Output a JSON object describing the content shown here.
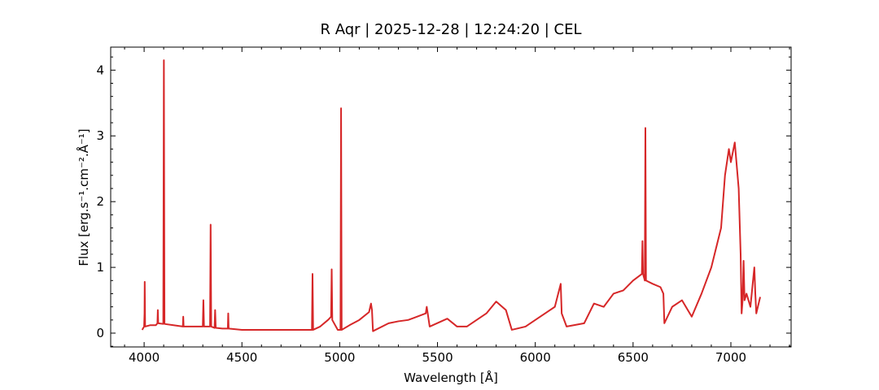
{
  "chart_data": {
    "type": "line",
    "title": "R Aqr | 2025-12-28 | 12:24:20 | CEL",
    "xlabel": "Wavelength [Å]",
    "ylabel": "Flux [erg.s⁻¹.cm⁻².Å⁻¹]",
    "xlim": [
      3829,
      7308
    ],
    "ylim": [
      -0.21,
      4.35
    ],
    "xticks": [
      4000,
      4500,
      5000,
      5500,
      6000,
      6500,
      7000
    ],
    "yticks": [
      0,
      1,
      2,
      3,
      4
    ],
    "xminorticks": [
      3900,
      4100,
      4200,
      4300,
      4400,
      4600,
      4700,
      4800,
      4900,
      5100,
      5200,
      5300,
      5400,
      5600,
      5700,
      5800,
      5900,
      6100,
      6200,
      6300,
      6400,
      6600,
      6700,
      6800,
      6900,
      7100,
      7200,
      7300
    ],
    "yminorticks": [
      -0.2,
      0.2,
      0.4,
      0.6,
      0.8,
      1.2,
      1.4,
      1.6,
      1.8,
      2.2,
      2.4,
      2.6,
      2.8,
      3.2,
      3.4,
      3.6,
      3.8,
      4.2
    ],
    "grid": false,
    "series": [
      {
        "name": "R Aqr",
        "color": "#d62728",
        "x": [
          3990,
          4000,
          4002,
          4003,
          4005,
          4030,
          4060,
          4068,
          4070,
          4072,
          4098,
          4101,
          4104,
          4150,
          4198,
          4200,
          4202,
          4250,
          4300,
          4303,
          4306,
          4337,
          4340,
          4343,
          4360,
          4363,
          4366,
          4400,
          4428,
          4430,
          4432,
          4500,
          4600,
          4700,
          4800,
          4858,
          4861,
          4864,
          4900,
          4940,
          4956,
          4959,
          4962,
          4990,
          5004,
          5007,
          5010,
          5050,
          5100,
          5150,
          5160,
          5165,
          5170,
          5250,
          5300,
          5350,
          5440,
          5445,
          5460,
          5550,
          5600,
          5650,
          5750,
          5800,
          5850,
          5860,
          5880,
          5950,
          6000,
          6100,
          6130,
          6135,
          6160,
          6250,
          6300,
          6350,
          6400,
          6450,
          6500,
          6545,
          6548,
          6551,
          6560,
          6563,
          6566,
          6600,
          6640,
          6655,
          6660,
          6700,
          6750,
          6800,
          6850,
          6900,
          6950,
          6970,
          6990,
          7000,
          7020,
          7040,
          7050,
          7055,
          7060,
          7065,
          7070,
          7080,
          7100,
          7120,
          7125,
          7130,
          7150
        ],
        "values": [
          0.05,
          0.1,
          0.3,
          0.78,
          0.1,
          0.12,
          0.12,
          0.15,
          0.35,
          0.15,
          0.14,
          4.15,
          0.14,
          0.12,
          0.1,
          0.25,
          0.1,
          0.1,
          0.1,
          0.5,
          0.1,
          0.1,
          1.65,
          0.1,
          0.08,
          0.35,
          0.08,
          0.07,
          0.07,
          0.3,
          0.07,
          0.05,
          0.05,
          0.05,
          0.05,
          0.05,
          0.9,
          0.05,
          0.1,
          0.2,
          0.25,
          0.97,
          0.2,
          0.05,
          0.05,
          3.42,
          0.05,
          0.12,
          0.2,
          0.32,
          0.45,
          0.35,
          0.03,
          0.15,
          0.18,
          0.2,
          0.3,
          0.4,
          0.1,
          0.22,
          0.1,
          0.1,
          0.3,
          0.48,
          0.35,
          0.25,
          0.05,
          0.1,
          0.2,
          0.4,
          0.75,
          0.3,
          0.1,
          0.15,
          0.45,
          0.4,
          0.6,
          0.65,
          0.8,
          0.9,
          1.4,
          0.9,
          0.8,
          3.12,
          0.8,
          0.75,
          0.7,
          0.6,
          0.15,
          0.4,
          0.5,
          0.25,
          0.6,
          1.0,
          1.6,
          2.4,
          2.8,
          2.6,
          2.9,
          2.2,
          1.2,
          0.3,
          0.5,
          1.1,
          0.5,
          0.6,
          0.4,
          1.0,
          0.6,
          0.3,
          0.55
        ]
      }
    ]
  }
}
